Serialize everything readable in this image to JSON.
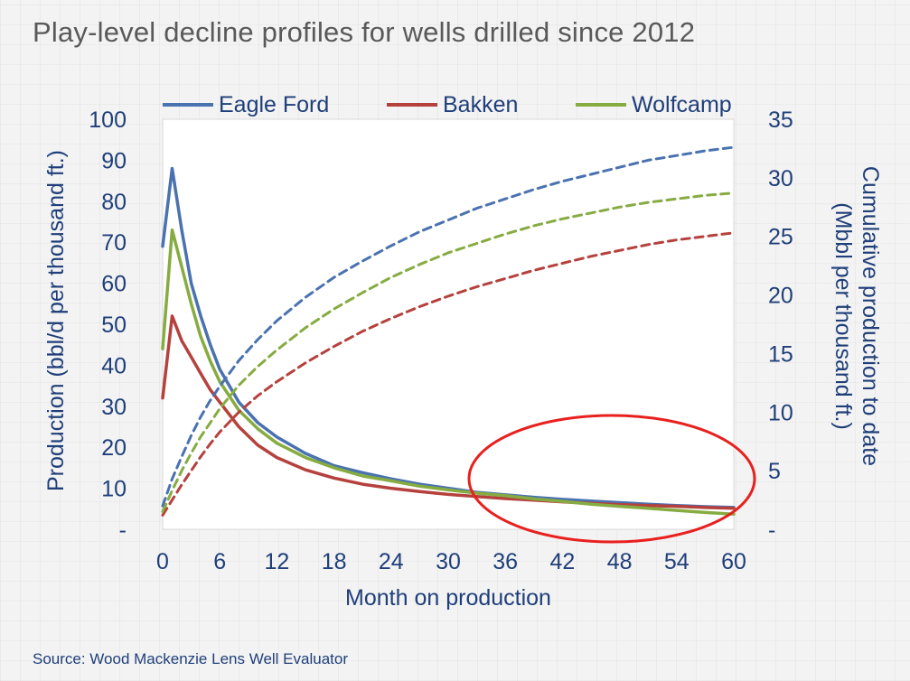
{
  "title": "Play-level decline profiles for wells drilled since 2012",
  "source": "Source: Wood Mackenzie Lens Well Evaluator",
  "chart_data": {
    "type": "line",
    "xlabel": "Month on production",
    "ylabel": "Production (bbl/d per thousand ft.)",
    "y2label_line1": "Cumulative production to date",
    "y2label_line2": "(Mbbl per thousand ft.)",
    "xlim": [
      0,
      60
    ],
    "ylim": [
      0,
      100
    ],
    "y2lim": [
      0,
      35
    ],
    "x_ticks": [
      "0",
      "6",
      "12",
      "18",
      "24",
      "30",
      "36",
      "42",
      "48",
      "54",
      "60"
    ],
    "y_ticks": [
      "-",
      "10",
      "20",
      "30",
      "40",
      "50",
      "60",
      "70",
      "80",
      "90",
      "100"
    ],
    "y2_ticks": [
      "-",
      "5",
      "10",
      "15",
      "20",
      "25",
      "30",
      "35"
    ],
    "legend": [
      "Eagle Ford",
      "Bakken",
      "Wolfcamp"
    ],
    "annotation": "red ellipse highlighting months 32-60",
    "x": [
      0,
      1,
      2,
      3,
      4,
      5,
      6,
      8,
      10,
      12,
      15,
      18,
      21,
      24,
      27,
      30,
      33,
      36,
      39,
      42,
      45,
      48,
      51,
      54,
      57,
      60
    ],
    "series": [
      {
        "name": "Eagle Ford",
        "axis": "left",
        "style": "solid",
        "color": "#4a72b0",
        "values": [
          69,
          88,
          73,
          60,
          52,
          45,
          39,
          31,
          26,
          22.5,
          18.5,
          15.5,
          13.8,
          12.3,
          11,
          10,
          9,
          8.4,
          7.8,
          7.3,
          6.9,
          6.5,
          6.1,
          5.8,
          5.5,
          5.3
        ]
      },
      {
        "name": "Bakken",
        "axis": "left",
        "style": "solid",
        "color": "#b5413d",
        "values": [
          32,
          52,
          46,
          42,
          38,
          34,
          31,
          25,
          20.5,
          17.5,
          14.5,
          12.5,
          11,
          10,
          9.2,
          8.5,
          8,
          7.5,
          7.1,
          6.7,
          6.3,
          6,
          5.8,
          5.6,
          5.3,
          5.1
        ]
      },
      {
        "name": "Wolfcamp",
        "axis": "left",
        "style": "solid",
        "color": "#86ac41",
        "values": [
          44,
          73,
          64,
          55,
          47,
          41,
          36,
          29,
          24.5,
          21,
          17.5,
          15,
          13,
          11.8,
          10.5,
          9.6,
          8.8,
          8.2,
          7.4,
          6.8,
          6.1,
          5.6,
          5.1,
          4.6,
          4.1,
          3.7
        ]
      },
      {
        "name": "Eagle Ford cumulative",
        "axis": "right",
        "style": "dashed",
        "color": "#4a72b0",
        "values": [
          2,
          4.3,
          6.2,
          8.0,
          9.6,
          11.0,
          12.2,
          14.4,
          16.2,
          17.8,
          19.8,
          21.5,
          22.9,
          24.2,
          25.4,
          26.4,
          27.4,
          28.2,
          29.0,
          29.7,
          30.3,
          30.9,
          31.5,
          31.9,
          32.3,
          32.6
        ]
      },
      {
        "name": "Bakken cumulative",
        "axis": "right",
        "style": "dashed",
        "color": "#b5413d",
        "values": [
          1.2,
          2.5,
          3.8,
          5.0,
          6.2,
          7.3,
          8.3,
          10.0,
          11.4,
          12.6,
          14.2,
          15.6,
          16.9,
          18.0,
          19.0,
          19.9,
          20.7,
          21.4,
          22.1,
          22.7,
          23.3,
          23.8,
          24.3,
          24.7,
          25.0,
          25.3
        ]
      },
      {
        "name": "Wolfcamp cumulative",
        "axis": "right",
        "style": "dashed",
        "color": "#86ac41",
        "values": [
          1.5,
          3.3,
          5.0,
          6.5,
          7.9,
          9.1,
          10.3,
          12.3,
          13.9,
          15.3,
          17.2,
          18.8,
          20.2,
          21.5,
          22.6,
          23.6,
          24.4,
          25.2,
          25.9,
          26.5,
          27.0,
          27.5,
          27.9,
          28.2,
          28.5,
          28.7
        ]
      }
    ]
  }
}
